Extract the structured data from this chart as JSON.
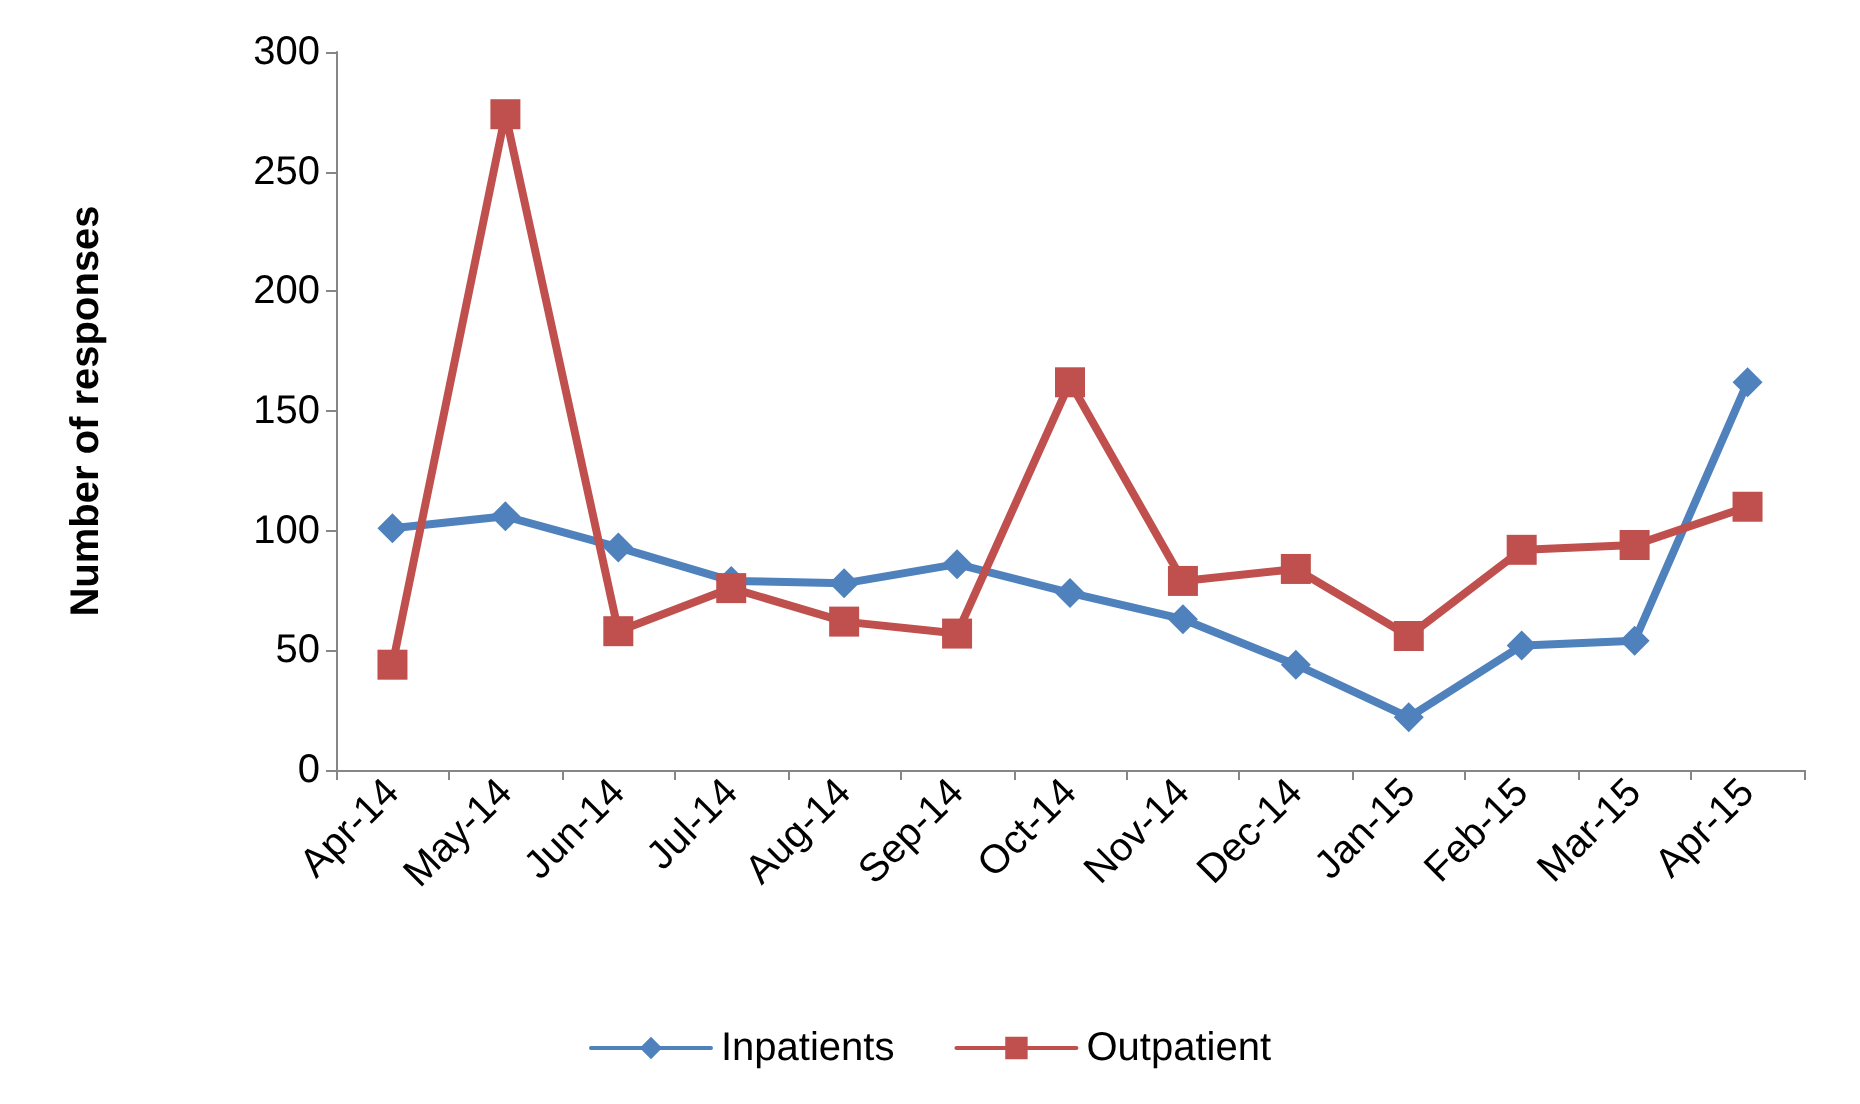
{
  "chart_data": {
    "type": "line",
    "ylabel": "Number of responses",
    "categories": [
      "Apr-14",
      "May-14",
      "Jun-14",
      "Jul-14",
      "Aug-14",
      "Sep-14",
      "Oct-14",
      "Nov-14",
      "Dec-14",
      "Jan-15",
      "Feb-15",
      "Mar-15",
      "Apr-15"
    ],
    "series": [
      {
        "name": "Inpatients",
        "color": "#4f81bd",
        "marker": "diamond",
        "values": [
          101,
          106,
          93,
          79,
          78,
          86,
          74,
          63,
          44,
          22,
          52,
          54,
          162
        ]
      },
      {
        "name": "Outpatient",
        "color": "#c0504d",
        "marker": "square",
        "values": [
          44,
          274,
          58,
          76,
          62,
          57,
          162,
          79,
          84,
          56,
          92,
          94,
          110
        ]
      }
    ],
    "ylim": [
      0,
      300
    ],
    "yticks": [
      0,
      50,
      100,
      150,
      200,
      250,
      300
    ],
    "grid": false,
    "legend": "bottom",
    "line_style": "solid"
  }
}
